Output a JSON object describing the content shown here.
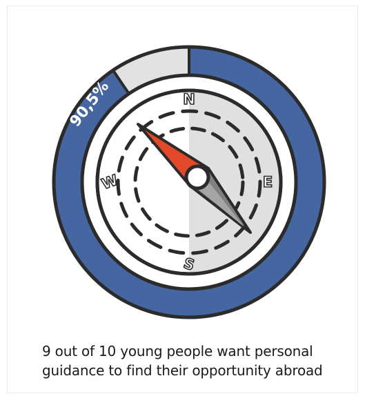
{
  "infographic": {
    "percentage": 90.5,
    "percentage_label": "90,5%",
    "directions": {
      "north": "N",
      "east": "E",
      "south": "S",
      "west": "W"
    },
    "caption": "9 out of 10 young people want personal guidance to find their opportunity abroad",
    "colors": {
      "ring_fill": "#4566a0",
      "ring_empty": "#e2e2e2",
      "outline": "#2b2b2b",
      "needle_north": "#e2482a",
      "needle_south": "#808080",
      "face_shade": "#e0e0e0"
    },
    "icon": "compass-icon"
  }
}
